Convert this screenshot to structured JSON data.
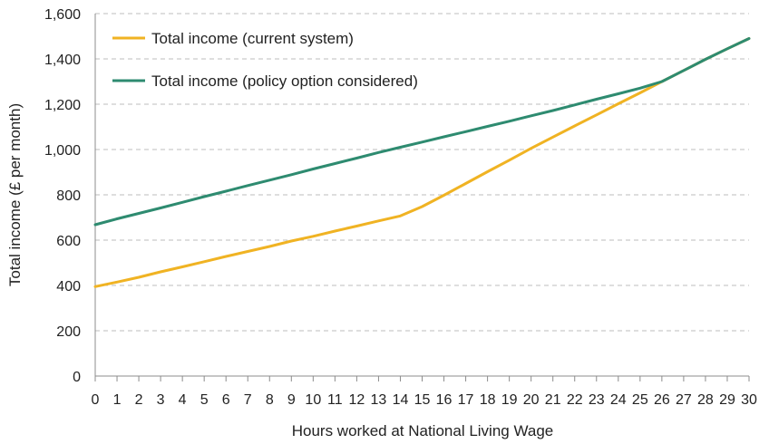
{
  "chart_data": {
    "type": "line",
    "xlabel": "Hours worked at National Living Wage",
    "ylabel": "Total income (£ per month)",
    "x": [
      0,
      1,
      2,
      3,
      4,
      5,
      6,
      7,
      8,
      9,
      10,
      11,
      12,
      13,
      14,
      15,
      16,
      17,
      18,
      19,
      20,
      21,
      22,
      23,
      24,
      25,
      26,
      27,
      28,
      29,
      30
    ],
    "xlim": [
      0,
      30
    ],
    "ylim": [
      0,
      1600
    ],
    "yticks": [
      0,
      200,
      400,
      600,
      800,
      1000,
      1200,
      1400,
      1600
    ],
    "ytick_labels": [
      "0",
      "200",
      "400",
      "600",
      "800",
      "1,000",
      "1,200",
      "1,400",
      "1,600"
    ],
    "grid": true,
    "legend_position": "top-left",
    "series": [
      {
        "name": "Total income (current system)",
        "color": "#f0b323",
        "values": [
          395,
          415,
          436,
          460,
          482,
          505,
          528,
          550,
          572,
          596,
          617,
          640,
          662,
          685,
          707,
          748,
          798,
          850,
          902,
          953,
          1005,
          1055,
          1104,
          1153,
          1202,
          1250,
          1300,
          1349,
          1398,
          1445,
          1490
        ]
      },
      {
        "name": "Total income (policy option considered)",
        "color": "#2e8b70",
        "values": [
          668,
          694,
          718,
          742,
          767,
          792,
          816,
          841,
          865,
          889,
          914,
          938,
          962,
          987,
          1010,
          1033,
          1056,
          1079,
          1102,
          1125,
          1149,
          1172,
          1197,
          1222,
          1246,
          1271,
          1300,
          1349,
          1398,
          1445,
          1490
        ]
      }
    ]
  }
}
